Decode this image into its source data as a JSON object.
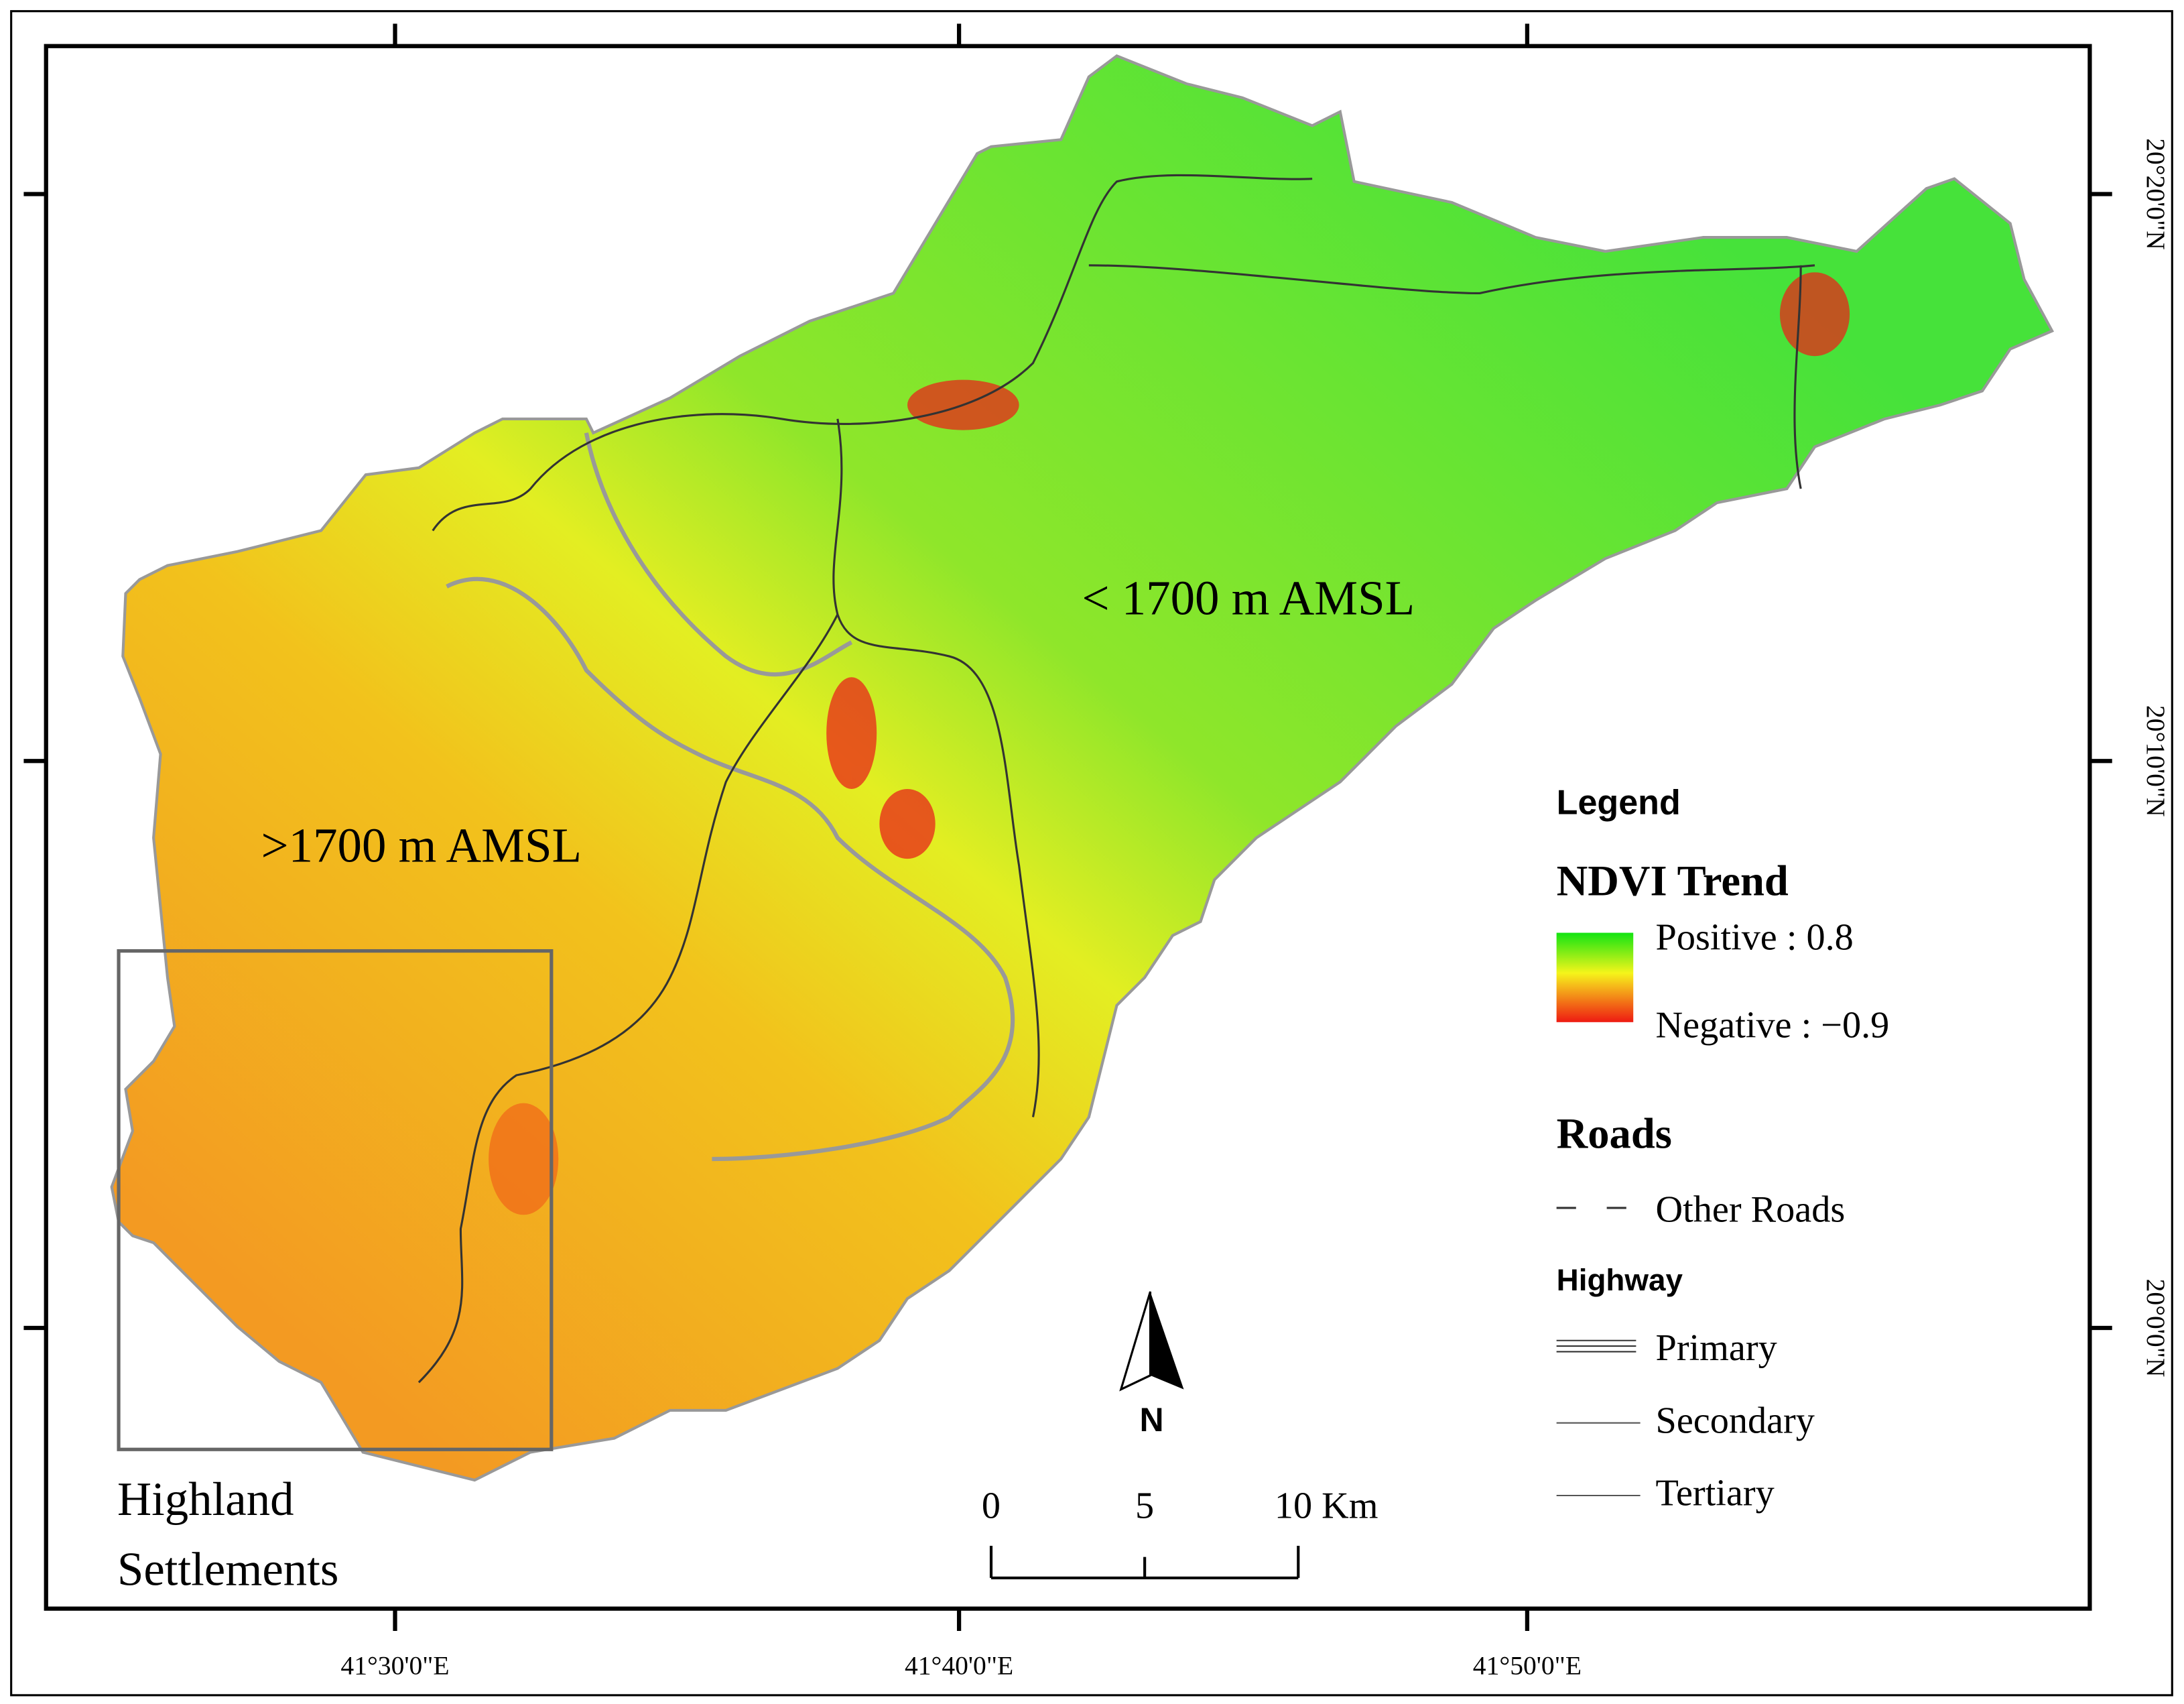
{
  "map": {
    "x_labels": [
      "41°30'0\"E",
      "41°40'0\"E",
      "41°50'0\"E"
    ],
    "y_labels": [
      "20°20'0\"N",
      "20°10'0\"N",
      "20°0'0\"N"
    ],
    "annotations": [
      "< 1700 m AMSL",
      ">1700 m AMSL"
    ],
    "inset_label": [
      "Highland",
      "Settlements"
    ],
    "north": "N",
    "scale_bar": [
      "0",
      "5",
      "10 Km"
    ],
    "legend": {
      "title": "Legend",
      "ndvi_title": "NDVI Trend",
      "ndvi_items": [
        "Positive : 0.8",
        "Negative : −0.9"
      ],
      "roads_title": "Roads",
      "other_roads": "Other Roads",
      "highway_title": "Highway",
      "highway_items": [
        "Primary",
        "Secondary",
        "Tertiary"
      ]
    }
  }
}
